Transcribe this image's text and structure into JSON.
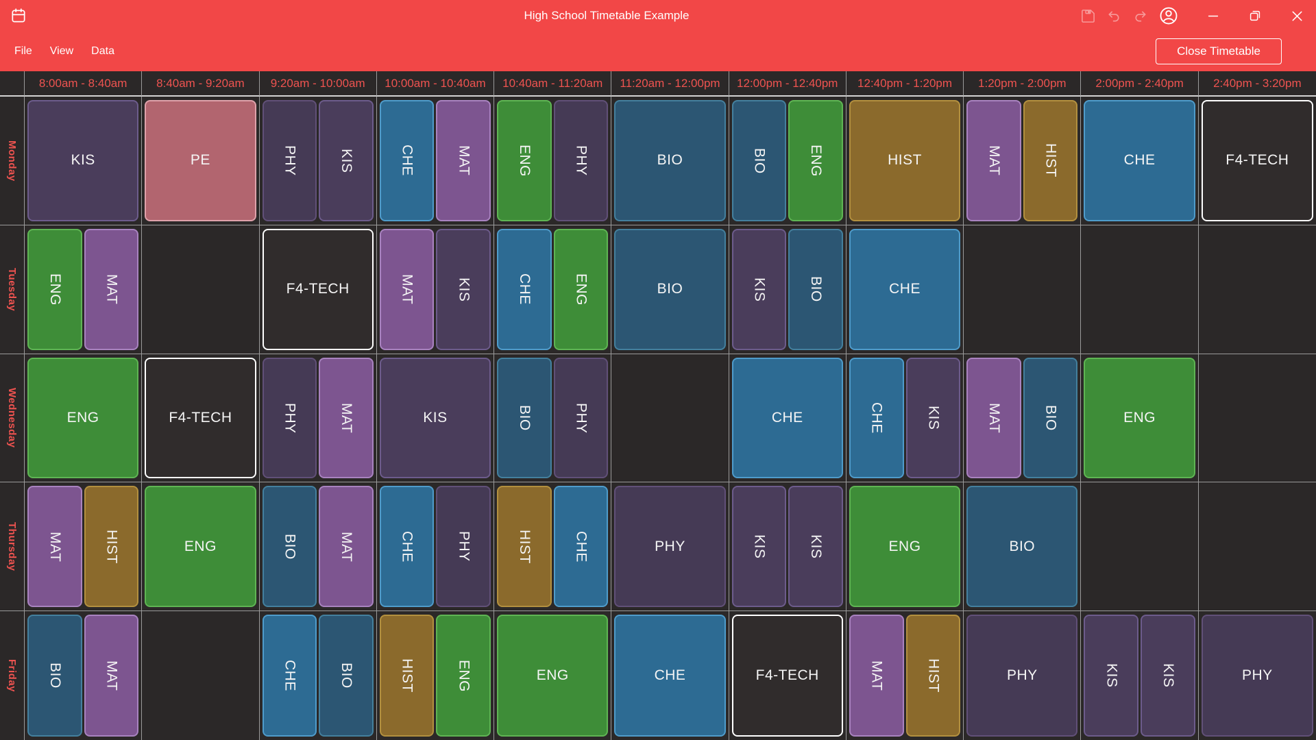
{
  "titlebar": {
    "title": "High School Timetable Example",
    "icons": [
      "calendar-icon",
      "save-icon",
      "undo-icon",
      "redo-icon",
      "account-icon",
      "minimize-icon",
      "maximize-icon",
      "close-icon"
    ]
  },
  "menubar": {
    "items": [
      "File",
      "View",
      "Data"
    ],
    "close_button": "Close Timetable"
  },
  "colors": {
    "accent_red": "#f24747",
    "header_text_red": "#ef5350",
    "grid_background": "#2b2828",
    "grid_line": "#9b9b9b",
    "grid_line_bright": "#d4d4d4",
    "cell_text": "#f5f5f5"
  },
  "timetable": {
    "time_slots": [
      "8:00am - 8:40am",
      "8:40am - 9:20am",
      "9:20am - 10:00am",
      "10:00am - 10:40am",
      "10:40am - 11:20am",
      "11:20am - 12:00pm",
      "12:00pm - 12:40pm",
      "12:40pm - 1:20pm",
      "1:20pm - 2:00pm",
      "2:00pm - 2:40pm",
      "2:40pm - 3:20pm"
    ],
    "days": [
      "Monday",
      "Tuesday",
      "Wednesday",
      "Thursday",
      "Friday"
    ],
    "subjects": {
      "KIS": {
        "bg": "#4a3d5b",
        "border": "#6d5c8c"
      },
      "PE": {
        "bg": "#b2656f",
        "border": "#dfa2ab"
      },
      "PHY": {
        "bg": "#453a55",
        "border": "#615078"
      },
      "CHE": {
        "bg": "#2d6b93",
        "border": "#4f9ccb"
      },
      "MAT": {
        "bg": "#7d5590",
        "border": "#a983c0"
      },
      "ENG": {
        "bg": "#3e8d38",
        "border": "#5fb554"
      },
      "BIO": {
        "bg": "#2c5673",
        "border": "#44809e"
      },
      "HIST": {
        "bg": "#8b6a2c",
        "border": "#b3903f"
      },
      "F4-TECH": {
        "bg": "#302c2c",
        "border": "#ffffff"
      }
    },
    "grid": {
      "Monday": [
        [
          "KIS"
        ],
        [
          "PE"
        ],
        [
          "PHY",
          "KIS"
        ],
        [
          "CHE",
          "MAT"
        ],
        [
          "ENG",
          "PHY"
        ],
        [
          "BIO"
        ],
        [
          "BIO",
          "ENG"
        ],
        [
          "HIST"
        ],
        [
          "MAT",
          "HIST"
        ],
        [
          "CHE"
        ],
        [
          "F4-TECH"
        ]
      ],
      "Tuesday": [
        [
          "ENG",
          "MAT"
        ],
        null,
        [
          "F4-TECH"
        ],
        [
          "MAT",
          "KIS"
        ],
        [
          "CHE",
          "ENG"
        ],
        [
          "BIO"
        ],
        [
          "KIS",
          "BIO"
        ],
        [
          "CHE"
        ],
        null,
        null,
        null
      ],
      "Wednesday": [
        [
          "ENG"
        ],
        [
          "F4-TECH"
        ],
        [
          "PHY",
          "MAT"
        ],
        [
          "KIS"
        ],
        [
          "BIO",
          "PHY"
        ],
        null,
        [
          "CHE"
        ],
        [
          "CHE",
          "KIS"
        ],
        [
          "MAT",
          "BIO"
        ],
        [
          "ENG"
        ],
        null
      ],
      "Thursday": [
        [
          "MAT",
          "HIST"
        ],
        [
          "ENG"
        ],
        [
          "BIO",
          "MAT"
        ],
        [
          "CHE",
          "PHY"
        ],
        [
          "HIST",
          "CHE"
        ],
        [
          "PHY"
        ],
        [
          "KIS",
          "KIS"
        ],
        [
          "ENG"
        ],
        [
          "BIO"
        ],
        null,
        null
      ],
      "Friday": [
        [
          "BIO",
          "MAT"
        ],
        null,
        [
          "CHE",
          "BIO"
        ],
        [
          "HIST",
          "ENG"
        ],
        [
          "ENG"
        ],
        [
          "CHE"
        ],
        [
          "F4-TECH"
        ],
        [
          "MAT",
          "HIST"
        ],
        [
          "PHY"
        ],
        [
          "KIS",
          "KIS"
        ],
        [
          "PHY"
        ]
      ]
    }
  }
}
